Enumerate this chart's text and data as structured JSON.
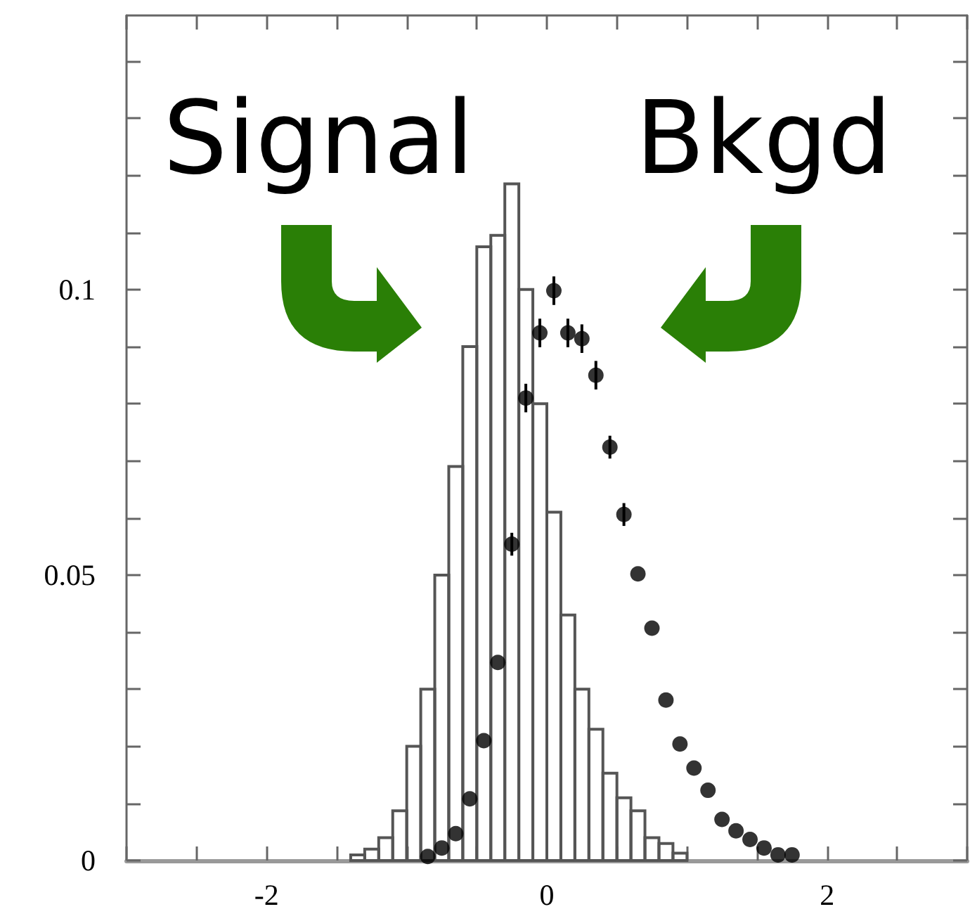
{
  "chart_data": {
    "type": "histogram",
    "annotations": [
      "Signal",
      "Bkgd"
    ],
    "xlim": [
      -3,
      3
    ],
    "xticks": [
      {
        "value": -3,
        "label": null
      },
      {
        "value": -2.5,
        "label": null
      },
      -2,
      {
        "value": -1.5,
        "label": null
      },
      {
        "value": -1,
        "label": null
      },
      {
        "value": -0.5,
        "label": null
      },
      0,
      {
        "value": 0.5,
        "label": null
      },
      {
        "value": 1,
        "label": null
      },
      {
        "value": 1.5,
        "label": null
      },
      2,
      {
        "value": 2.5,
        "label": null
      },
      {
        "value": 3,
        "label": null
      }
    ],
    "ylim": [
      0,
      0.148
    ],
    "yticks": [
      0,
      {
        "value": 0.01,
        "label": null
      },
      {
        "value": 0.02,
        "label": null
      },
      {
        "value": 0.03,
        "label": null
      },
      {
        "value": 0.04,
        "label": null
      },
      0.05,
      {
        "value": 0.06,
        "label": null
      },
      {
        "value": 0.07,
        "label": null
      },
      {
        "value": 0.08,
        "label": null
      },
      {
        "value": 0.09,
        "label": null
      },
      0.1,
      {
        "value": 0.11,
        "label": null
      },
      {
        "value": 0.12,
        "label": null
      },
      {
        "value": 0.13,
        "label": null
      },
      {
        "value": 0.14,
        "label": null
      }
    ],
    "series": [
      {
        "type": "histogram",
        "color": "#555555",
        "bins": [
          -1.4,
          -1.3,
          -1.2,
          -1.1,
          -1.0,
          -0.9,
          -0.8,
          -0.7,
          -0.6,
          -0.5,
          -0.4,
          -0.3,
          -0.2,
          -0.1,
          0,
          0.1,
          0.2,
          0.3,
          0.4,
          0.5,
          0.6,
          0.7,
          0.8,
          0.9,
          1.0
        ],
        "values": [
          0.001,
          0.002,
          0.004,
          0.0087,
          0.02,
          0.03,
          0.05,
          0.069,
          0.09,
          0.1075,
          0.1095,
          0.1185,
          0.1,
          0.08,
          0.061,
          0.043,
          0.03,
          0.023,
          0.0153,
          0.011,
          0.0087,
          0.004,
          0.003,
          0.0013
        ]
      },
      {
        "type": "scatter",
        "color": "#000000",
        "marker": "circle",
        "x": [
          -0.85,
          -0.75,
          -0.65,
          -0.55,
          -0.45,
          -0.35,
          -0.25,
          -0.15,
          -0.05,
          0.05,
          0.15,
          0.25,
          0.35,
          0.45,
          0.55,
          0.65,
          0.75,
          0.85,
          0.95,
          1.05,
          1.15,
          1.25,
          1.35,
          1.45,
          1.55,
          1.65,
          1.75
        ],
        "values": [
          0.0007,
          0.0022,
          0.0047,
          0.0108,
          0.021,
          0.0347,
          0.0554,
          0.081,
          0.0924,
          0.0998,
          0.0924,
          0.0914,
          0.085,
          0.0724,
          0.0606,
          0.0502,
          0.0407,
          0.0281,
          0.0204,
          0.0162,
          0.0123,
          0.0072,
          0.0052,
          0.0037,
          0.0022,
          0.001,
          0.001
        ],
        "errors": [
          null,
          null,
          null,
          null,
          null,
          null,
          0.002,
          0.0025,
          0.0025,
          0.0025,
          0.0025,
          0.0025,
          0.0025,
          0.002,
          0.002,
          null,
          null,
          null,
          null,
          null,
          null,
          null,
          null,
          null,
          null,
          null,
          null
        ]
      }
    ]
  }
}
